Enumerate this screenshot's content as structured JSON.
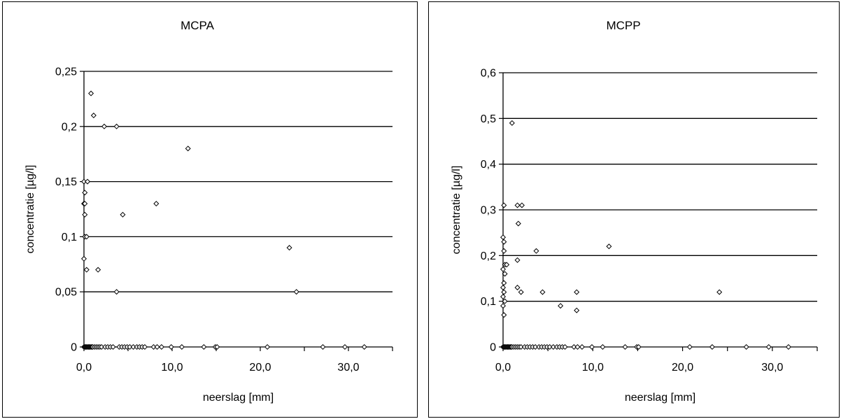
{
  "chart_data": [
    {
      "type": "scatter",
      "title": "MCPA",
      "xlabel": "neerslag [mm]",
      "ylabel": "concentratie [µg/l]",
      "xlim": [
        0,
        35
      ],
      "ylim": [
        0,
        0.25
      ],
      "x_ticks": [
        0,
        10,
        20,
        30
      ],
      "x_tick_labels": [
        "0,0",
        "10,0",
        "20,0",
        "30,0"
      ],
      "y_ticks": [
        0,
        0.05,
        0.1,
        0.15,
        0.2,
        0.25
      ],
      "y_tick_labels": [
        "0",
        "0,05",
        "0,1",
        "0,15",
        "0,2",
        "0,25"
      ],
      "grid": "horizontal",
      "series": [
        {
          "marker": "diamond",
          "points": [
            [
              0.8,
              0.23
            ],
            [
              1.1,
              0.21
            ],
            [
              2.3,
              0.2
            ],
            [
              3.7,
              0.2
            ],
            [
              11.8,
              0.18
            ],
            [
              0.0,
              0.15
            ],
            [
              0.4,
              0.15
            ],
            [
              0.1,
              0.14
            ],
            [
              0.0,
              0.13
            ],
            [
              0.1,
              0.13
            ],
            [
              0.1,
              0.12
            ],
            [
              4.4,
              0.12
            ],
            [
              8.2,
              0.13
            ],
            [
              0.1,
              0.1
            ],
            [
              0.3,
              0.1
            ],
            [
              0.0,
              0.08
            ],
            [
              0.3,
              0.07
            ],
            [
              1.6,
              0.07
            ],
            [
              3.7,
              0.05
            ],
            [
              23.3,
              0.09
            ],
            [
              24.1,
              0.05
            ],
            [
              0.0,
              0
            ],
            [
              0.1,
              0
            ],
            [
              0.2,
              0
            ],
            [
              0.3,
              0
            ],
            [
              0.4,
              0
            ],
            [
              0.5,
              0
            ],
            [
              0.6,
              0
            ],
            [
              0.7,
              0
            ],
            [
              0.8,
              0
            ],
            [
              0.9,
              0
            ],
            [
              1.0,
              0
            ],
            [
              1.2,
              0
            ],
            [
              1.4,
              0
            ],
            [
              1.6,
              0
            ],
            [
              1.8,
              0
            ],
            [
              2.0,
              0
            ],
            [
              2.4,
              0
            ],
            [
              2.7,
              0
            ],
            [
              3.0,
              0
            ],
            [
              3.3,
              0
            ],
            [
              4.0,
              0
            ],
            [
              4.3,
              0
            ],
            [
              4.6,
              0
            ],
            [
              4.9,
              0
            ],
            [
              5.2,
              0
            ],
            [
              5.6,
              0
            ],
            [
              6.0,
              0
            ],
            [
              6.3,
              0
            ],
            [
              6.6,
              0
            ],
            [
              6.9,
              0
            ],
            [
              7.9,
              0
            ],
            [
              8.3,
              0
            ],
            [
              8.8,
              0
            ],
            [
              9.9,
              0
            ],
            [
              11.1,
              0
            ],
            [
              13.6,
              0
            ],
            [
              14.9,
              0
            ],
            [
              15.1,
              0
            ],
            [
              20.8,
              0
            ],
            [
              27.1,
              0
            ],
            [
              29.6,
              0
            ],
            [
              31.8,
              0
            ]
          ]
        }
      ]
    },
    {
      "type": "scatter",
      "title": "MCPP",
      "xlabel": "neerslag [mm]",
      "ylabel": "concentratie [µg/l]",
      "xlim": [
        0,
        35
      ],
      "ylim": [
        0,
        0.6
      ],
      "x_ticks": [
        0,
        10,
        20,
        30
      ],
      "x_tick_labels": [
        "0,0",
        "10,0",
        "20,0",
        "30,0"
      ],
      "y_ticks": [
        0,
        0.1,
        0.2,
        0.3,
        0.4,
        0.5,
        0.6
      ],
      "y_tick_labels": [
        "0",
        "0,1",
        "0,2",
        "0,3",
        "0,4",
        "0,5",
        "0,6"
      ],
      "grid": "horizontal",
      "series": [
        {
          "marker": "diamond",
          "points": [
            [
              1.0,
              0.49
            ],
            [
              0.1,
              0.31
            ],
            [
              1.6,
              0.31
            ],
            [
              2.1,
              0.31
            ],
            [
              1.7,
              0.27
            ],
            [
              0.0,
              0.24
            ],
            [
              0.1,
              0.23
            ],
            [
              0.1,
              0.21
            ],
            [
              0.2,
              0.18
            ],
            [
              0.4,
              0.18
            ],
            [
              0.0,
              0.17
            ],
            [
              0.2,
              0.16
            ],
            [
              0.1,
              0.14
            ],
            [
              0.0,
              0.13
            ],
            [
              0.1,
              0.12
            ],
            [
              0.0,
              0.11
            ],
            [
              0.2,
              0.1
            ],
            [
              0.0,
              0.09
            ],
            [
              0.1,
              0.07
            ],
            [
              1.6,
              0.19
            ],
            [
              1.6,
              0.13
            ],
            [
              2.0,
              0.12
            ],
            [
              3.7,
              0.21
            ],
            [
              4.4,
              0.12
            ],
            [
              6.4,
              0.09
            ],
            [
              8.2,
              0.12
            ],
            [
              8.2,
              0.08
            ],
            [
              11.8,
              0.22
            ],
            [
              24.1,
              0.12
            ],
            [
              0.0,
              0
            ],
            [
              0.1,
              0
            ],
            [
              0.2,
              0
            ],
            [
              0.3,
              0
            ],
            [
              0.4,
              0
            ],
            [
              0.5,
              0
            ],
            [
              0.6,
              0
            ],
            [
              0.7,
              0
            ],
            [
              0.8,
              0
            ],
            [
              0.9,
              0
            ],
            [
              1.0,
              0
            ],
            [
              1.2,
              0
            ],
            [
              1.4,
              0
            ],
            [
              1.6,
              0
            ],
            [
              1.8,
              0
            ],
            [
              2.0,
              0
            ],
            [
              2.4,
              0
            ],
            [
              2.7,
              0
            ],
            [
              3.0,
              0
            ],
            [
              3.3,
              0
            ],
            [
              3.6,
              0
            ],
            [
              4.0,
              0
            ],
            [
              4.3,
              0
            ],
            [
              4.6,
              0
            ],
            [
              4.9,
              0
            ],
            [
              5.2,
              0
            ],
            [
              5.6,
              0
            ],
            [
              6.0,
              0
            ],
            [
              6.3,
              0
            ],
            [
              6.6,
              0
            ],
            [
              6.9,
              0
            ],
            [
              7.9,
              0
            ],
            [
              8.3,
              0
            ],
            [
              8.8,
              0
            ],
            [
              9.9,
              0
            ],
            [
              11.1,
              0
            ],
            [
              13.6,
              0
            ],
            [
              14.9,
              0
            ],
            [
              15.1,
              0
            ],
            [
              20.8,
              0
            ],
            [
              23.3,
              0
            ],
            [
              27.1,
              0
            ],
            [
              29.6,
              0
            ],
            [
              31.8,
              0
            ]
          ]
        }
      ]
    }
  ]
}
